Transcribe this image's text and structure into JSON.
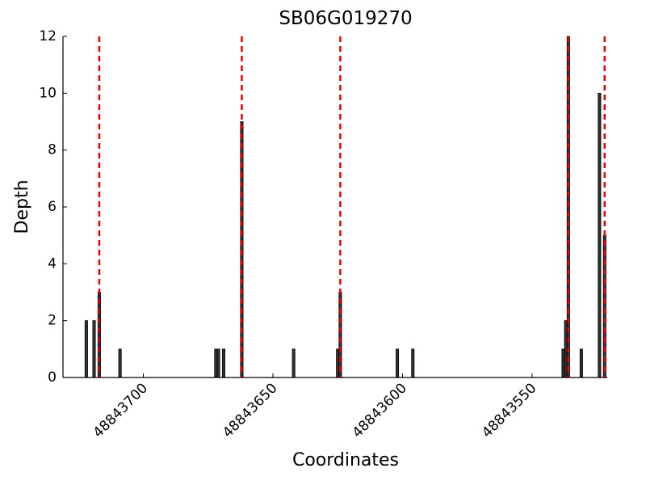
{
  "chart_data": {
    "type": "bar",
    "title": "SB06G019270",
    "x_label": "Coordinates",
    "y_label": "Depth",
    "x": [
      48843722,
      48843719,
      48843717,
      48843709,
      48843672,
      48843671,
      48843669,
      48843662,
      48843642,
      48843625,
      48843624,
      48843602,
      48843596,
      48843538,
      48843537,
      48843536,
      48843531,
      48843524,
      48843522
    ],
    "values": [
      2,
      2,
      3,
      1,
      1,
      1,
      1,
      9,
      1,
      1,
      3,
      1,
      1,
      1,
      2,
      12,
      1,
      10,
      5
    ],
    "color": "#333333",
    "edge_color": "#000000",
    "vlines": {
      "x": [
        48843717,
        48843662,
        48843624,
        48843536,
        48843522
      ],
      "color": "#ee0000"
    },
    "xlim": [
      48843731,
      48843521
    ],
    "xticks": [
      48843700,
      48843650,
      48843600,
      48843550
    ],
    "ylim": [
      0,
      12
    ],
    "yticks": [
      0,
      2,
      4,
      6,
      8,
      10,
      12
    ],
    "grid": false
  }
}
